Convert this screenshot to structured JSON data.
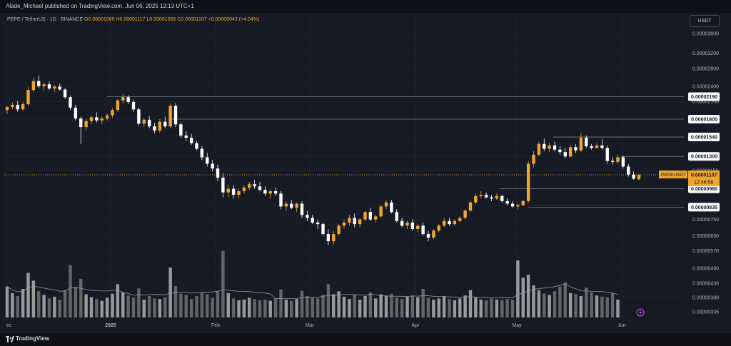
{
  "header": {
    "publisher": "Alade_Michael published on TradingView.com, Jun 06, 2025 12:13 UTC+1"
  },
  "symbol_info": {
    "symbol": "PEPE / TetherUS · 1D · BINANCE",
    "open": "O0.00001065",
    "high": "H0.00001117",
    "low": "L0.00001055",
    "close": "C0.00001107",
    "change": "+0.00000043 (+4.04%)"
  },
  "unit_button": "USDT",
  "footer": {
    "brand": "TradingView"
  },
  "colors": {
    "up": "#f0a52c",
    "down": "#ffffff",
    "background": "#161a25",
    "grid": "#1e222d",
    "level_line": "#787b86",
    "price_line": "#f0a52c"
  },
  "price_badge": {
    "symbol": "PEPEUSDT",
    "price": "0.00001107",
    "countdown": "12:46:58"
  },
  "chart_data": {
    "type": "candlestick",
    "title": "PEPE / TetherUS · 1D · BINANCE",
    "interval": "1D",
    "x_labels": [
      "ec",
      "2025",
      "Feb",
      "Mar",
      "Apr",
      "May",
      "Jun"
    ],
    "y_ticks": [
      "0.00003800",
      "0.00003200",
      "0.00002800",
      "0.00002400",
      "0.00002100",
      "0.00001800",
      "0.00001550",
      "0.00001300",
      "0.00001150",
      "0.00000980",
      "0.00000850",
      "0.00000750",
      "0.00000650",
      "0.00000570",
      "0.00000490",
      "0.00000430",
      "0.00000380",
      "0.00000335"
    ],
    "y_scale": "log",
    "horizontal_levels": [
      "0.00002190",
      "0.00001800",
      "0.00001540",
      "0.00001300",
      "0.00000980",
      "0.00000835"
    ],
    "last_price": "0.00001107",
    "volume_panel": true,
    "volume_moving_average": true,
    "ohlc_bars": [
      [
        19.5,
        20.2,
        18.8,
        20.0
      ],
      [
        20.0,
        20.8,
        19.6,
        20.4
      ],
      [
        20.4,
        21.1,
        19.2,
        19.6
      ],
      [
        19.6,
        20.9,
        19.4,
        20.5
      ],
      [
        20.5,
        23.8,
        20.2,
        23.2
      ],
      [
        23.2,
        25.8,
        22.8,
        25.1
      ],
      [
        25.1,
        26.3,
        23.6,
        24.0
      ],
      [
        24.0,
        24.8,
        23.0,
        24.4
      ],
      [
        24.4,
        25.0,
        23.2,
        23.5
      ],
      [
        23.5,
        24.3,
        22.8,
        23.9
      ],
      [
        23.9,
        24.6,
        23.1,
        23.3
      ],
      [
        23.3,
        23.6,
        21.5,
        21.8
      ],
      [
        21.8,
        22.1,
        19.5,
        19.9
      ],
      [
        19.9,
        20.4,
        17.8,
        18.1
      ],
      [
        18.1,
        18.4,
        14.5,
        16.8
      ],
      [
        16.8,
        18.1,
        16.4,
        17.7
      ],
      [
        17.7,
        18.6,
        17.2,
        18.3
      ],
      [
        18.3,
        19.1,
        17.5,
        17.8
      ],
      [
        17.8,
        18.5,
        17.2,
        18.1
      ],
      [
        18.1,
        18.9,
        17.8,
        18.6
      ],
      [
        18.6,
        19.8,
        18.2,
        19.5
      ],
      [
        19.5,
        21.5,
        19.2,
        21.2
      ],
      [
        21.2,
        22.4,
        20.6,
        21.8
      ],
      [
        21.8,
        22.2,
        20.5,
        20.9
      ],
      [
        20.9,
        21.4,
        19.2,
        19.6
      ],
      [
        19.6,
        19.9,
        17.0,
        17.3
      ],
      [
        17.3,
        18.2,
        16.8,
        17.9
      ],
      [
        17.9,
        18.5,
        16.6,
        16.9
      ],
      [
        16.9,
        17.4,
        15.9,
        16.3
      ],
      [
        16.3,
        18.0,
        16.0,
        17.6
      ],
      [
        17.6,
        18.4,
        16.6,
        16.9
      ],
      [
        16.9,
        20.6,
        16.6,
        20.2
      ],
      [
        20.2,
        20.7,
        16.8,
        17.2
      ],
      [
        17.2,
        17.5,
        15.3,
        15.6
      ],
      [
        15.6,
        16.2,
        14.9,
        15.3
      ],
      [
        15.3,
        15.8,
        14.4,
        14.6
      ],
      [
        14.6,
        14.9,
        13.7,
        13.9
      ],
      [
        13.9,
        14.2,
        12.6,
        12.9
      ],
      [
        12.9,
        13.4,
        11.9,
        12.2
      ],
      [
        12.2,
        12.6,
        11.4,
        11.7
      ],
      [
        11.7,
        12.1,
        10.5,
        10.8
      ],
      [
        10.8,
        11.2,
        9.1,
        9.5
      ],
      [
        9.5,
        10.2,
        9.1,
        9.8
      ],
      [
        9.8,
        10.1,
        9.0,
        9.3
      ],
      [
        9.3,
        9.8,
        9.0,
        9.6
      ],
      [
        9.6,
        10.1,
        9.4,
        9.9
      ],
      [
        9.9,
        10.4,
        9.7,
        10.2
      ],
      [
        10.2,
        10.6,
        9.8,
        10.0
      ],
      [
        10.0,
        10.4,
        9.6,
        9.7
      ],
      [
        9.7,
        10.0,
        9.2,
        9.4
      ],
      [
        9.4,
        9.7,
        9.0,
        9.6
      ],
      [
        9.6,
        9.9,
        9.2,
        9.4
      ],
      [
        9.4,
        9.6,
        8.2,
        8.4
      ],
      [
        8.4,
        8.8,
        8.1,
        8.6
      ],
      [
        8.6,
        8.9,
        8.2,
        8.3
      ],
      [
        8.3,
        8.7,
        8.0,
        8.6
      ],
      [
        8.6,
        8.8,
        7.6,
        7.8
      ],
      [
        7.8,
        8.1,
        7.4,
        7.6
      ],
      [
        7.6,
        7.8,
        7.2,
        7.3
      ],
      [
        7.3,
        7.5,
        6.9,
        7.2
      ],
      [
        7.2,
        7.3,
        6.5,
        6.6
      ],
      [
        6.6,
        6.9,
        6.0,
        6.2
      ],
      [
        6.2,
        6.8,
        6.0,
        6.6
      ],
      [
        6.6,
        7.2,
        6.5,
        7.1
      ],
      [
        7.1,
        7.5,
        6.9,
        7.3
      ],
      [
        7.3,
        7.8,
        7.1,
        7.6
      ],
      [
        7.6,
        7.9,
        7.0,
        7.2
      ],
      [
        7.2,
        7.6,
        7.0,
        7.5
      ],
      [
        7.5,
        8.1,
        7.4,
        8.0
      ],
      [
        8.0,
        8.3,
        7.4,
        7.5
      ],
      [
        7.5,
        7.8,
        7.3,
        7.7
      ],
      [
        7.7,
        8.5,
        7.6,
        8.4
      ],
      [
        8.4,
        8.9,
        8.2,
        8.7
      ],
      [
        8.7,
        8.9,
        7.9,
        8.0
      ],
      [
        8.0,
        8.2,
        7.3,
        7.4
      ],
      [
        7.4,
        7.6,
        7.0,
        7.1
      ],
      [
        7.1,
        7.4,
        6.9,
        7.3
      ],
      [
        7.3,
        7.5,
        6.8,
        6.9
      ],
      [
        6.9,
        7.2,
        6.7,
        7.1
      ],
      [
        7.1,
        7.3,
        6.5,
        6.6
      ],
      [
        6.6,
        6.8,
        6.2,
        6.4
      ],
      [
        6.4,
        6.9,
        6.3,
        6.8
      ],
      [
        6.8,
        7.2,
        6.7,
        7.1
      ],
      [
        7.1,
        7.6,
        7.0,
        7.4
      ],
      [
        7.4,
        7.6,
        7.1,
        7.2
      ],
      [
        7.2,
        7.5,
        7.1,
        7.4
      ],
      [
        7.4,
        7.7,
        7.3,
        7.6
      ],
      [
        7.6,
        8.2,
        7.5,
        8.1
      ],
      [
        8.1,
        8.8,
        8.0,
        8.7
      ],
      [
        8.7,
        9.4,
        8.6,
        9.2
      ],
      [
        9.2,
        9.6,
        9.0,
        9.3
      ],
      [
        9.3,
        9.5,
        9.0,
        9.1
      ],
      [
        9.1,
        9.3,
        8.8,
        9.0
      ],
      [
        9.0,
        9.4,
        8.9,
        9.2
      ],
      [
        9.2,
        9.3,
        8.7,
        8.8
      ],
      [
        8.8,
        9.0,
        8.5,
        8.6
      ],
      [
        8.6,
        8.8,
        8.3,
        8.4
      ],
      [
        8.4,
        8.6,
        8.2,
        8.5
      ],
      [
        8.5,
        8.9,
        8.4,
        8.8
      ],
      [
        8.8,
        12.5,
        8.7,
        12.2
      ],
      [
        12.2,
        13.6,
        11.8,
        13.2
      ],
      [
        13.2,
        14.8,
        13.0,
        14.5
      ],
      [
        14.5,
        15.2,
        13.6,
        13.9
      ],
      [
        13.9,
        14.6,
        13.5,
        14.3
      ],
      [
        14.3,
        14.8,
        13.6,
        13.8
      ],
      [
        13.8,
        14.2,
        13.2,
        13.5
      ],
      [
        13.5,
        14.0,
        12.8,
        13.0
      ],
      [
        13.0,
        14.4,
        12.9,
        14.1
      ],
      [
        14.1,
        14.5,
        13.4,
        13.7
      ],
      [
        13.7,
        16.0,
        13.5,
        15.3
      ],
      [
        15.3,
        15.6,
        14.0,
        14.2
      ],
      [
        14.2,
        14.5,
        13.8,
        14.0
      ],
      [
        14.0,
        14.6,
        13.9,
        14.3
      ],
      [
        14.3,
        15.1,
        13.8,
        14.0
      ],
      [
        14.0,
        14.3,
        12.2,
        12.5
      ],
      [
        12.5,
        12.9,
        12.1,
        12.4
      ],
      [
        12.4,
        13.2,
        12.2,
        12.9
      ],
      [
        12.9,
        13.1,
        11.7,
        11.9
      ],
      [
        11.9,
        12.2,
        10.9,
        11.1
      ],
      [
        11.1,
        11.4,
        10.6,
        10.7
      ],
      [
        10.65,
        11.17,
        10.55,
        11.07
      ]
    ],
    "volume_bars": [
      5.2,
      4.1,
      3.6,
      4.8,
      7.5,
      6.2,
      4.4,
      3.8,
      3.2,
      3.5,
      3.0,
      4.6,
      8.8,
      5.1,
      6.5,
      3.9,
      3.4,
      3.1,
      2.8,
      3.3,
      4.0,
      5.6,
      4.2,
      3.7,
      3.3,
      4.9,
      3.0,
      3.6,
      3.2,
      3.1,
      3.4,
      8.4,
      5.3,
      4.0,
      3.8,
      3.1,
      3.6,
      4.2,
      3.9,
      3.3,
      4.4,
      11.2,
      4.1,
      3.2,
      2.9,
      3.0,
      3.3,
      3.1,
      2.9,
      3.0,
      2.8,
      3.2,
      4.7,
      3.0,
      2.8,
      3.1,
      4.5,
      3.6,
      3.3,
      3.2,
      3.8,
      5.6,
      3.9,
      4.4,
      3.5,
      3.1,
      3.8,
      3.0,
      3.6,
      4.2,
      3.2,
      3.9,
      3.6,
      4.0,
      3.3,
      3.1,
      3.5,
      3.7,
      3.4,
      4.8,
      3.3,
      3.0,
      3.2,
      3.6,
      3.1,
      2.9,
      3.2,
      3.7,
      4.6,
      3.4,
      3.0,
      2.9,
      3.2,
      3.0,
      2.9,
      3.1,
      3.0,
      9.6,
      6.7,
      7.2,
      5.4,
      4.6,
      4.0,
      3.8,
      4.4,
      5.2,
      5.9,
      4.1,
      3.9,
      3.6,
      5.0,
      4.2,
      3.7,
      3.5,
      3.4,
      4.1,
      3.0
    ]
  }
}
